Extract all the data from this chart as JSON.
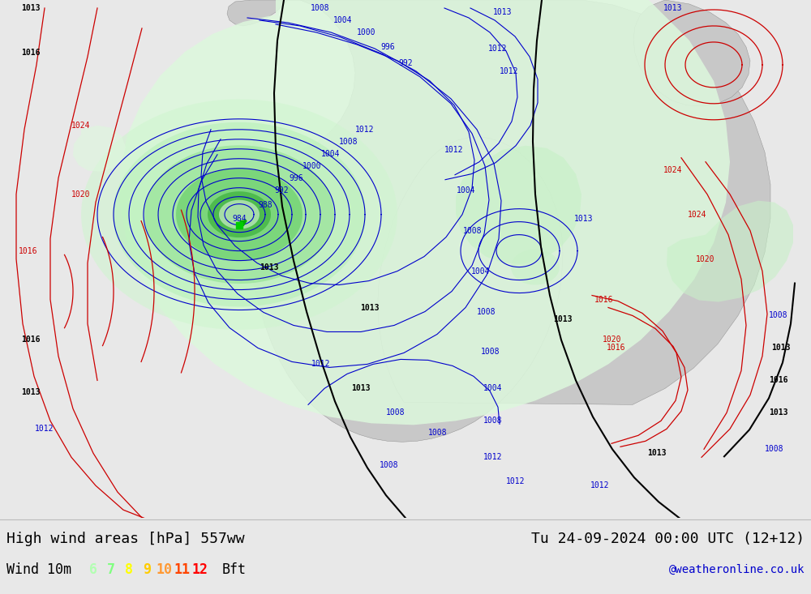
{
  "title_left": "High wind areas [hPa] 557ww",
  "title_right": "Tu 24-09-2024 00:00 UTC (12+12)",
  "subtitle_left": "Wind 10m",
  "subtitle_right": "@weatheronline.co.uk",
  "bft_label": "Bft",
  "bft_values": [
    "6",
    "7",
    "8",
    "9",
    "10",
    "11",
    "12"
  ],
  "bft_colors": [
    "#b2ffb2",
    "#80ff80",
    "#ffff00",
    "#ffcc00",
    "#ff9933",
    "#ff4400",
    "#ff0000"
  ],
  "bg_color": "#e8e8e8",
  "ocean_color": "#e8e8e8",
  "land_color": "#c8c8c8",
  "green_strong": "#33cc33",
  "green_med": "#80d880",
  "green_light": "#c8f0c8",
  "green_lighter": "#ddf8dd",
  "blue_iso": "#0000cc",
  "red_iso": "#cc0000",
  "black_iso": "#000000",
  "legend_bg": "#e8e8e8",
  "title_fontsize": 13,
  "legend_fontsize": 12,
  "iso_fontsize": 7,
  "fig_width": 10.0,
  "fig_height": 7.33,
  "dpi": 100
}
